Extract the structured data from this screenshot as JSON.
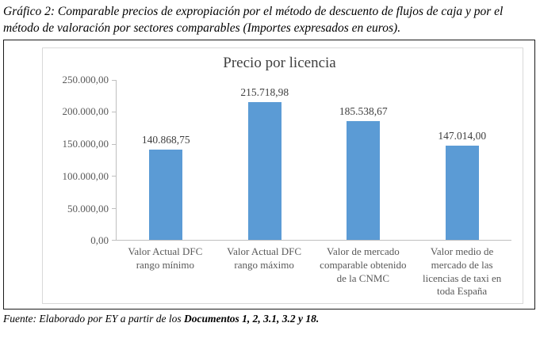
{
  "figure_caption": "Gráfico 2: Comparable precios de expropiación por el método de descuento de flujos de caja y por el método de valoración por sectores comparables (Importes expresados en euros).",
  "chart_data": {
    "type": "bar",
    "title": "Precio por licencia",
    "categories": [
      "Valor Actual DFC rango mínimo",
      "Valor Actual DFC rango máximo",
      "Valor de mercado comparable obtenido de la CNMC",
      "Valor medio de mercado de las licencias de taxi en toda España"
    ],
    "values": [
      140868.75,
      215718.98,
      185538.67,
      147014.0
    ],
    "value_labels": [
      "140.868,75",
      "215.718,98",
      "185.538,67",
      "147.014,00"
    ],
    "y_ticks": [
      "250.000,00",
      "200.000,00",
      "150.000,00",
      "100.000,00",
      "50.000,00",
      "0,00"
    ],
    "ylim": [
      0,
      250000
    ],
    "xlabel": "",
    "ylabel": "",
    "grid": false,
    "legend_position": "none",
    "bar_color": "#5b9bd5",
    "axis_color": "#bfbfbf",
    "tick_label_color": "#595959",
    "value_label_color": "#404040"
  },
  "source": {
    "prefix": "Fuente: Elaborado por EY a partir de los ",
    "documents": "Documentos 1, 2, 3.1, 3.2 y 18."
  }
}
